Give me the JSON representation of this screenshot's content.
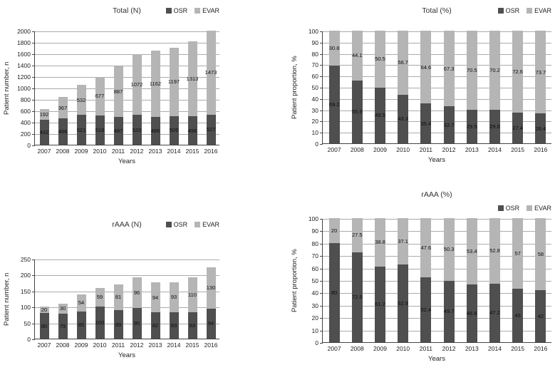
{
  "figure": {
    "background": "#ffffff"
  },
  "colors": {
    "osr": "#4f4f4f",
    "evar": "#b5b5b5"
  },
  "chart_data": [
    {
      "type": "bar",
      "stacked": true,
      "title": "Total (N)",
      "xlabel": "Years",
      "ylabel": "Patient number, n",
      "ylim": [
        0,
        2000
      ],
      "ytick_step": 200,
      "grid": true,
      "legend_position": "top-right",
      "categories": [
        "2007",
        "2008",
        "2009",
        "2010",
        "2011",
        "2012",
        "2013",
        "2014",
        "2015",
        "2016"
      ],
      "series": [
        {
          "name": "OSR",
          "color": "#4f4f4f",
          "values": [
            432,
            466,
            521,
            516,
            487,
            520,
            486,
            505,
            496,
            527
          ]
        },
        {
          "name": "EVAR",
          "color": "#b5b5b5",
          "values": [
            192,
            367,
            532,
            677,
            887,
            1072,
            1162,
            1197,
            1313,
            1473
          ]
        }
      ]
    },
    {
      "type": "bar",
      "stacked": true,
      "title": "Total (%)",
      "xlabel": "Years",
      "ylabel": "Patient proportion, %",
      "ylim": [
        0,
        100
      ],
      "ytick_step": 10,
      "grid": true,
      "legend_position": "top-right",
      "categories": [
        "2007",
        "2008",
        "2009",
        "2010",
        "2011",
        "2012",
        "2013",
        "2014",
        "2015",
        "2016"
      ],
      "series": [
        {
          "name": "OSR",
          "color": "#4f4f4f",
          "values": [
            69.2,
            55.9,
            49.5,
            43.3,
            35.4,
            32.7,
            29.5,
            29.8,
            27.4,
            26.4
          ]
        },
        {
          "name": "EVAR",
          "color": "#b5b5b5",
          "values": [
            30.8,
            44.1,
            50.5,
            56.7,
            64.6,
            67.3,
            70.5,
            70.2,
            72.6,
            73.7
          ]
        }
      ]
    },
    {
      "type": "bar",
      "stacked": true,
      "title": "rAAA (N)",
      "xlabel": "Years",
      "ylabel": "Patient number, n",
      "ylim": [
        0,
        250
      ],
      "ytick_step": 50,
      "grid": true,
      "legend_position": "top-right",
      "categories": [
        "2007",
        "2008",
        "2009",
        "2010",
        "2011",
        "2012",
        "2013",
        "2014",
        "2015",
        "2016"
      ],
      "series": [
        {
          "name": "OSR",
          "color": "#4f4f4f",
          "values": [
            80,
            79,
            85,
            100,
            89,
            95,
            82,
            83,
            83,
            94
          ]
        },
        {
          "name": "EVAR",
          "color": "#b5b5b5",
          "values": [
            20,
            30,
            54,
            59,
            81,
            96,
            94,
            93,
            110,
            130
          ]
        }
      ]
    },
    {
      "type": "bar",
      "stacked": true,
      "title": "rAAA (%)",
      "xlabel": "Years",
      "ylabel": "Patient proportion, %",
      "ylim": [
        0,
        100
      ],
      "ytick_step": 10,
      "grid": true,
      "legend_position": "top-right",
      "categories": [
        "2007",
        "2008",
        "2009",
        "2010",
        "2011",
        "2012",
        "2013",
        "2014",
        "2015",
        "2016"
      ],
      "series": [
        {
          "name": "OSR",
          "color": "#4f4f4f",
          "values": [
            80,
            72.5,
            61.2,
            62.9,
            52.4,
            49.7,
            46.6,
            47.2,
            43,
            42
          ]
        },
        {
          "name": "EVAR",
          "color": "#b5b5b5",
          "values": [
            20,
            27.5,
            38.8,
            37.1,
            47.6,
            50.3,
            53.4,
            52.8,
            57,
            58
          ]
        }
      ]
    }
  ]
}
